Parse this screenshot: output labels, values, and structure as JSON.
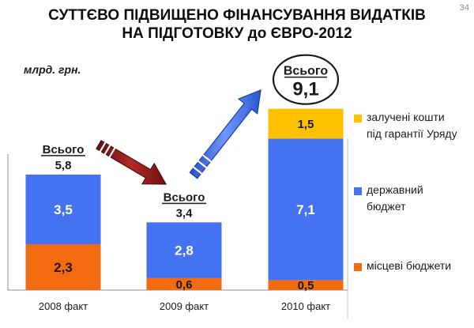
{
  "page_number": "34",
  "title_lines": [
    "СУТТЄВО ПІДВИЩЕНО ФІНАНСУВАННЯ ВИДАТКІВ",
    "НА ПІДГОТОВКУ до ЄВРО-2012"
  ],
  "unit_label": "млрд. грн.",
  "chart_data": {
    "type": "bar",
    "stacked": true,
    "categories": [
      "2008 факт",
      "2009 факт",
      "2010 факт"
    ],
    "series": [
      {
        "name": "місцеві бюджети",
        "color": "#f26b0f",
        "values": [
          2.3,
          0.6,
          0.5
        ],
        "labels": [
          "2,3",
          "0,6",
          "0,5"
        ]
      },
      {
        "name": "державний бюджет",
        "color": "#4472f0",
        "values": [
          3.5,
          2.8,
          7.1
        ],
        "labels": [
          "3,5",
          "2,8",
          "7,1"
        ]
      },
      {
        "name": "залучені кошти під гарантії Уряду",
        "color": "#ffc000",
        "values": [
          0,
          0,
          1.5
        ],
        "labels": [
          "",
          "",
          "1,5"
        ]
      }
    ],
    "legend": [
      {
        "lines": [
          "залучені кошти",
          "під гарантії Уряду"
        ],
        "color": "#ffc000"
      },
      {
        "lines": [
          "державний",
          "бюджет"
        ],
        "color": "#4472f0"
      },
      {
        "lines": [
          "місцеві бюджети"
        ],
        "color": "#f26b0f"
      }
    ],
    "totals": [
      {
        "caption": "Всього",
        "value": "5,8"
      },
      {
        "caption": "Всього",
        "value": "3,4"
      },
      {
        "caption": "Всього",
        "value": "9,1"
      }
    ],
    "arrows": [
      {
        "direction": "down",
        "color": "#8b1a1a"
      },
      {
        "direction": "up",
        "color": "#3a6ee8"
      }
    ],
    "ylim": [
      0,
      10
    ]
  }
}
